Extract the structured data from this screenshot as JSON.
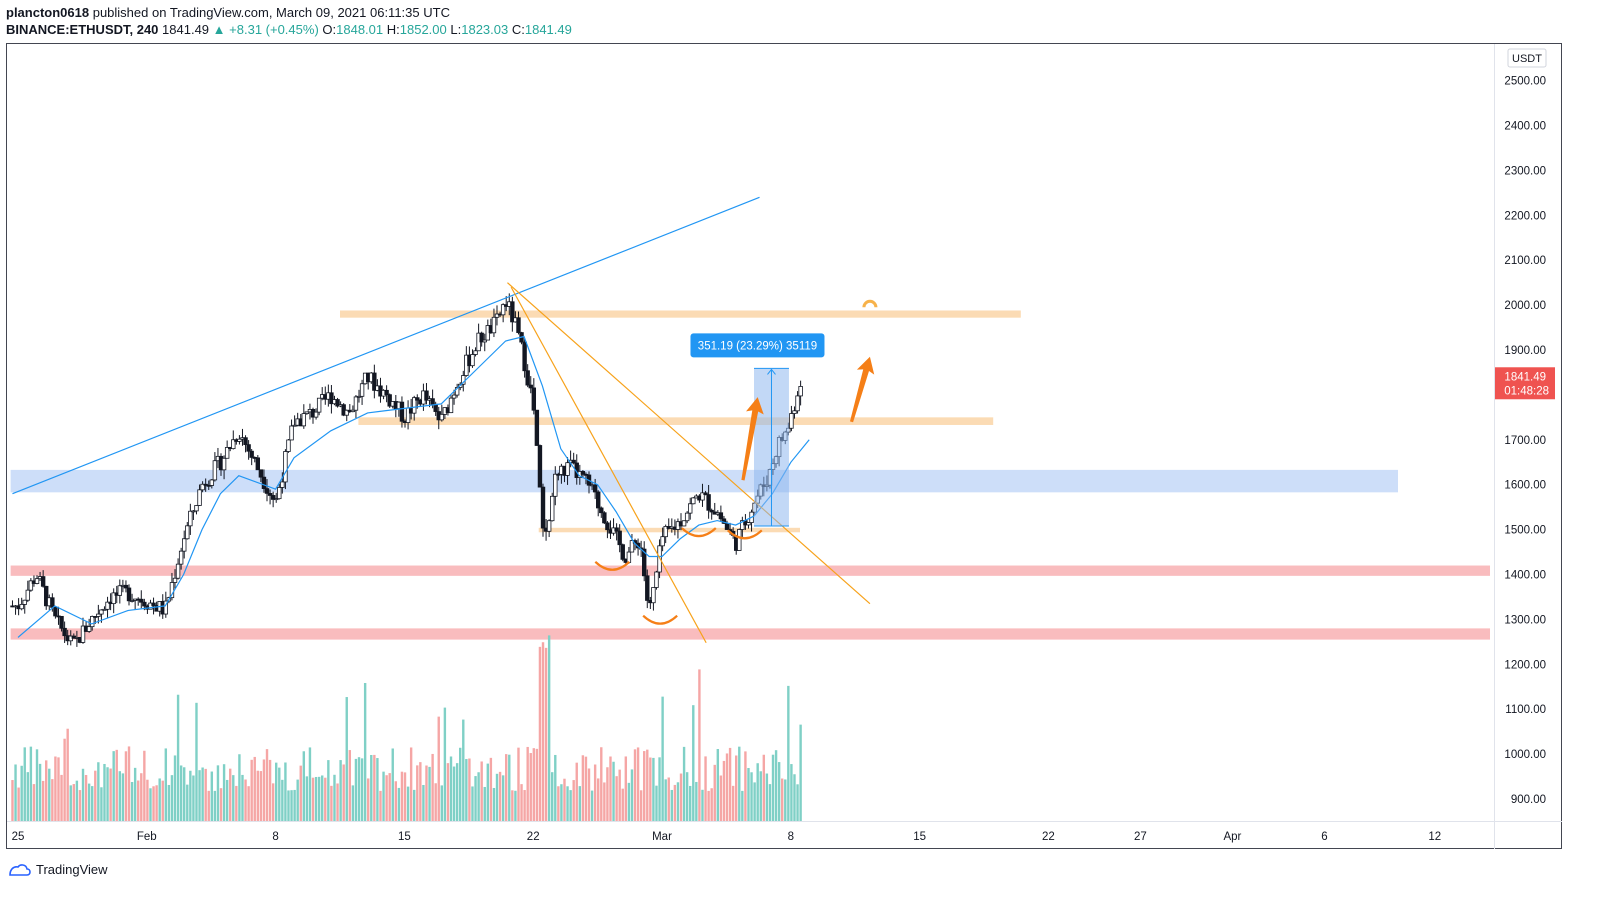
{
  "header": {
    "author": "plancton0618",
    "published": "published on TradingView.com, March 09, 2021 06:11:35 UTC",
    "symbol": "BINANCE:ETHUSDT, 240",
    "last": "1841.49",
    "change": "▲ +8.31 (+0.45%)",
    "o_label": "O:",
    "o": "1848.01",
    "h_label": "H:",
    "h": "1852.00",
    "l_label": "L:",
    "l": "1823.03",
    "c_label": "C:",
    "c": "1841.49"
  },
  "footer": {
    "brand": "TradingView",
    "icon": "tradingview-logo-icon"
  },
  "colors": {
    "up": "#26a69a",
    "down": "#ef5350",
    "candle_body_up": "#ffffff",
    "candle_body_down": "#131722",
    "ma": "#2196f3",
    "orange_zone": "#fbd7ac",
    "blue_zone": "#bcd3f7",
    "red_zone": "#f8b5b7",
    "orange_line": "#f7a21b",
    "arrow": "#f57f17",
    "measure_label": "#2196f3",
    "price_label": "#ef5350"
  },
  "chart_data": {
    "type": "candlestick",
    "currency_label": "USDT",
    "y_ticks": [
      "900.00",
      "1000.00",
      "1100.00",
      "1200.00",
      "1300.00",
      "1400.00",
      "1500.00",
      "1600.00",
      "1700.00",
      "1800.00",
      "1900.00",
      "2000.00",
      "2100.00",
      "2200.00",
      "2300.00",
      "2400.00",
      "2500.00"
    ],
    "x_ticks": [
      {
        "label": "25",
        "day": 0
      },
      {
        "label": "Feb",
        "day": 7
      },
      {
        "label": "8",
        "day": 14
      },
      {
        "label": "15",
        "day": 21
      },
      {
        "label": "22",
        "day": 28
      },
      {
        "label": "Mar",
        "day": 35
      },
      {
        "label": "8",
        "day": 42
      },
      {
        "label": "15",
        "day": 49
      },
      {
        "label": "22",
        "day": 56
      },
      {
        "label": "27",
        "day": 61
      },
      {
        "label": "Apr",
        "day": 66
      },
      {
        "label": "6",
        "day": 71
      },
      {
        "label": "12",
        "day": 77
      }
    ],
    "close_path": [
      [
        0,
        1330
      ],
      [
        1,
        1400
      ],
      [
        2,
        1300
      ],
      [
        3,
        1240
      ],
      [
        4,
        1300
      ],
      [
        5,
        1350
      ],
      [
        6,
        1360
      ],
      [
        7,
        1340
      ],
      [
        8,
        1320
      ],
      [
        9,
        1480
      ],
      [
        10,
        1600
      ],
      [
        11,
        1650
      ],
      [
        12,
        1720
      ],
      [
        13,
        1640
      ],
      [
        14,
        1560
      ],
      [
        15,
        1740
      ],
      [
        16,
        1760
      ],
      [
        17,
        1800
      ],
      [
        18,
        1760
      ],
      [
        19,
        1840
      ],
      [
        20,
        1800
      ],
      [
        21,
        1750
      ],
      [
        22,
        1800
      ],
      [
        23,
        1740
      ],
      [
        24,
        1840
      ],
      [
        25,
        1920
      ],
      [
        26,
        1960
      ],
      [
        26.5,
        2010
      ],
      [
        27,
        1960
      ],
      [
        27.5,
        1880
      ],
      [
        28,
        1780
      ],
      [
        28.6,
        1460
      ],
      [
        29.2,
        1620
      ],
      [
        30,
        1640
      ],
      [
        31,
        1600
      ],
      [
        32,
        1520
      ],
      [
        33,
        1440
      ],
      [
        33.8,
        1480
      ],
      [
        34.3,
        1310
      ],
      [
        34.7,
        1400
      ],
      [
        35,
        1480
      ],
      [
        36,
        1520
      ],
      [
        37,
        1580
      ],
      [
        38,
        1540
      ],
      [
        39,
        1470
      ],
      [
        40,
        1560
      ],
      [
        40.8,
        1620
      ],
      [
        41.3,
        1690
      ],
      [
        41.8,
        1720
      ],
      [
        42.2,
        1780
      ],
      [
        42.6,
        1845
      ]
    ],
    "ma_path": [
      [
        0,
        1260
      ],
      [
        2,
        1330
      ],
      [
        4,
        1290
      ],
      [
        6,
        1320
      ],
      [
        8,
        1330
      ],
      [
        9,
        1400
      ],
      [
        10,
        1500
      ],
      [
        11,
        1580
      ],
      [
        12,
        1620
      ],
      [
        14,
        1590
      ],
      [
        15,
        1660
      ],
      [
        17,
        1720
      ],
      [
        19,
        1760
      ],
      [
        21,
        1770
      ],
      [
        23,
        1780
      ],
      [
        25,
        1860
      ],
      [
        26.5,
        1920
      ],
      [
        27.5,
        1930
      ],
      [
        28.5,
        1820
      ],
      [
        29.5,
        1680
      ],
      [
        30.5,
        1620
      ],
      [
        31.5,
        1600
      ],
      [
        32.5,
        1540
      ],
      [
        33.5,
        1470
      ],
      [
        34.3,
        1440
      ],
      [
        35,
        1440
      ],
      [
        36,
        1480
      ],
      [
        37,
        1510
      ],
      [
        38,
        1520
      ],
      [
        39,
        1510
      ],
      [
        40,
        1530
      ],
      [
        41,
        1580
      ],
      [
        42,
        1650
      ],
      [
        43,
        1700
      ]
    ],
    "ma_label": "moving average",
    "volume_range": [
      0,
      1
    ],
    "last_price": "1841.49",
    "countdown": "01:48:28",
    "measure_label": "351.19 (23.29%) 35119",
    "zones": [
      {
        "name": "blue-support-resistance",
        "y1": 1583,
        "y2": 1633,
        "x1": -0.4,
        "x2": 75
      },
      {
        "name": "red-support-upper",
        "y1": 1397,
        "y2": 1420,
        "x1": -0.4,
        "x2": 80
      },
      {
        "name": "red-support-lower",
        "y1": 1255,
        "y2": 1280,
        "x1": -0.4,
        "x2": 80
      },
      {
        "name": "orange-resistance-top",
        "y1": 1972,
        "y2": 1988,
        "x1": 17.5,
        "x2": 54.5
      },
      {
        "name": "orange-level-mid",
        "y1": 1733,
        "y2": 1750,
        "x1": 18.5,
        "x2": 53
      },
      {
        "name": "orange-neckline",
        "y1": 1494,
        "y2": 1504,
        "x1": 28.3,
        "x2": 42.5
      }
    ],
    "trendlines": [
      {
        "name": "blue-rising-trendline",
        "from": [
          -0.3,
          1580
        ],
        "to": [
          40.3,
          2240
        ]
      },
      {
        "name": "orange-falling-trendline-outer",
        "from": [
          26.6,
          2050
        ],
        "to": [
          46.3,
          1335
        ]
      },
      {
        "name": "orange-falling-trendline-inner",
        "from": [
          26.8,
          2040
        ],
        "to": [
          37.4,
          1248
        ]
      }
    ],
    "measure": {
      "from_day": 40,
      "to_day": 41.9,
      "low": 1508,
      "high": 1859
    },
    "arcs": [
      [
        32.3,
        1415
      ],
      [
        34.9,
        1295
      ],
      [
        37.0,
        1490
      ],
      [
        39.5,
        1485
      ]
    ],
    "arrows": [
      {
        "from": [
          39.4,
          1610
        ],
        "to": [
          40.2,
          1795
        ]
      },
      {
        "from": [
          45.3,
          1740
        ],
        "to": [
          46.3,
          1885
        ]
      }
    ]
  }
}
